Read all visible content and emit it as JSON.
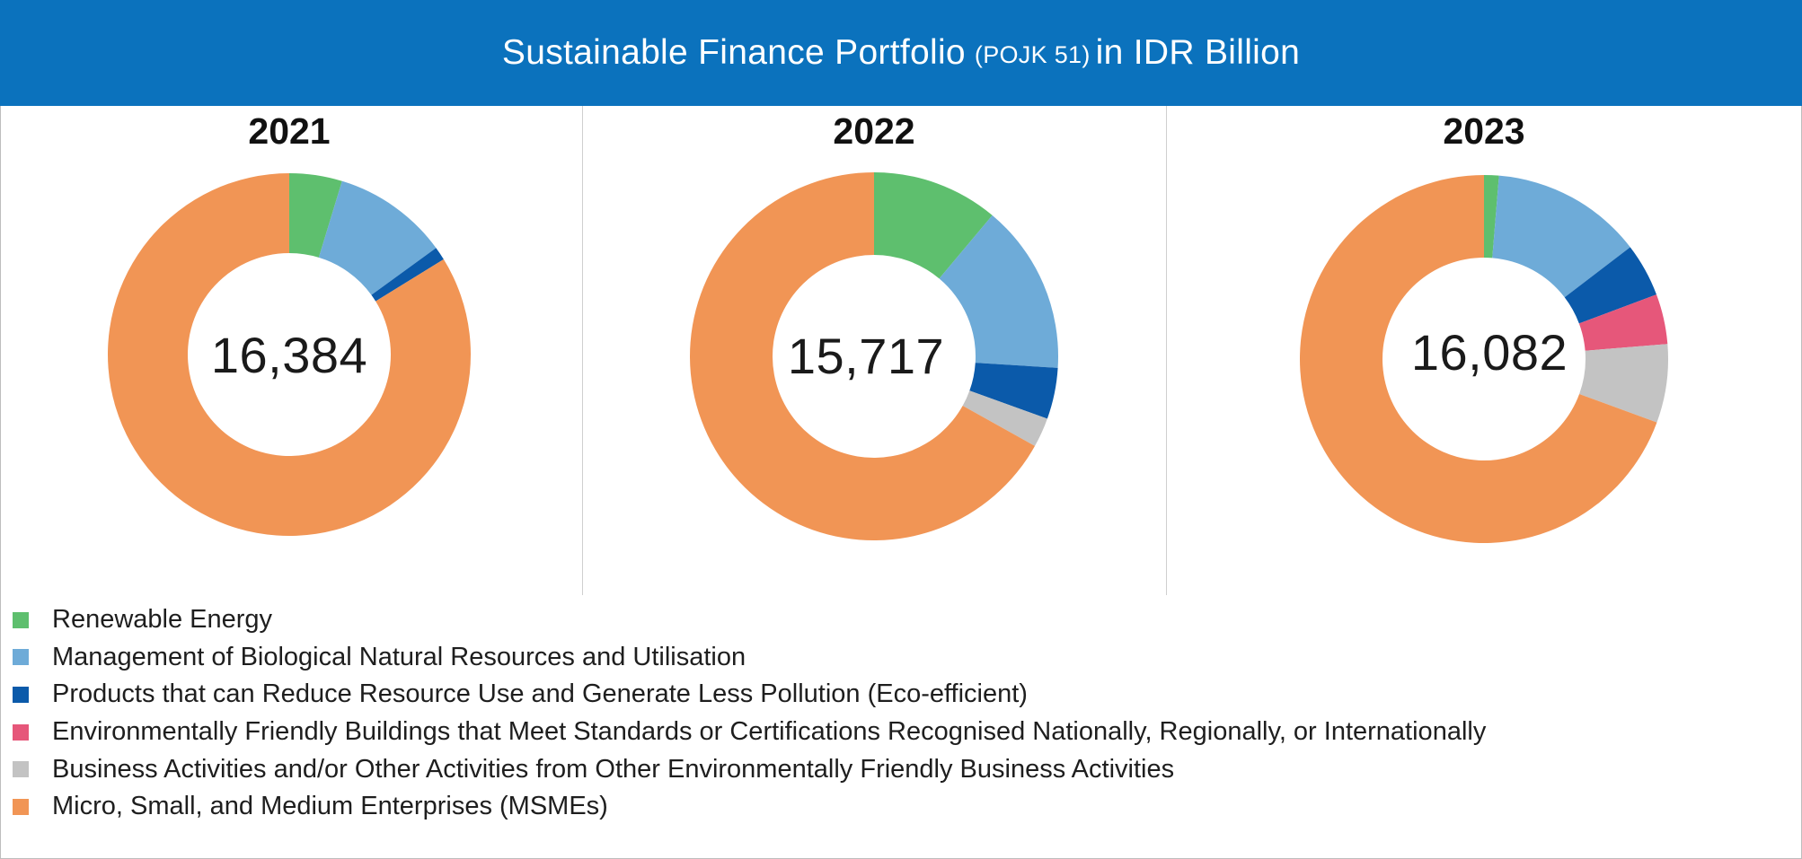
{
  "header": {
    "title_main": "Sustainable Finance Portfolio",
    "title_note": "(POJK 51)",
    "title_tail": "in IDR Billion"
  },
  "colors": {
    "header_bg": "#0b72bd",
    "renewable": "#5ebf6e",
    "biological": "#6eabd8",
    "eco_efficient": "#0b5aaa",
    "buildings": "#e6577a",
    "other": "#c3c3c3",
    "msme": "#f19555"
  },
  "legend": [
    {
      "key": "renewable",
      "label": "Renewable Energy"
    },
    {
      "key": "biological",
      "label": "Management of Biological Natural Resources and Utilisation"
    },
    {
      "key": "eco_efficient",
      "label": "Products that can Reduce Resource Use and Generate Less Pollution (Eco-efficient)"
    },
    {
      "key": "buildings",
      "label": "Environmentally Friendly Buildings that Meet Standards or Certifications Recognised Nationally, Regionally, or Internationally"
    },
    {
      "key": "other",
      "label": "Business Activities and/or Other Activities from Other Environmentally Friendly Business Activities"
    },
    {
      "key": "msme",
      "label": "Micro, Small, and Medium Enterprises (MSMEs)"
    }
  ],
  "chart_data": [
    {
      "type": "pie",
      "year": "2021",
      "total": "16,384",
      "slices": [
        {
          "category": "renewable",
          "share_pct": 4.7
        },
        {
          "category": "biological",
          "share_pct": 10.3
        },
        {
          "category": "eco_efficient",
          "share_pct": 1.2
        },
        {
          "category": "buildings",
          "share_pct": 0
        },
        {
          "category": "other",
          "share_pct": 0
        },
        {
          "category": "msme",
          "share_pct": 83.8
        }
      ]
    },
    {
      "type": "pie",
      "year": "2022",
      "total": "15,717",
      "slices": [
        {
          "category": "renewable",
          "share_pct": 11.1
        },
        {
          "category": "biological",
          "share_pct": 14.9
        },
        {
          "category": "eco_efficient",
          "share_pct": 4.5
        },
        {
          "category": "buildings",
          "share_pct": 0
        },
        {
          "category": "other",
          "share_pct": 2.6
        },
        {
          "category": "msme",
          "share_pct": 66.9
        }
      ]
    },
    {
      "type": "pie",
      "year": "2023",
      "total": "16,082",
      "slices": [
        {
          "category": "renewable",
          "share_pct": 1.3
        },
        {
          "category": "biological",
          "share_pct": 13.3
        },
        {
          "category": "eco_efficient",
          "share_pct": 4.7
        },
        {
          "category": "buildings",
          "share_pct": 4.4
        },
        {
          "category": "other",
          "share_pct": 6.9
        },
        {
          "category": "msme",
          "share_pct": 69.4
        }
      ]
    }
  ]
}
